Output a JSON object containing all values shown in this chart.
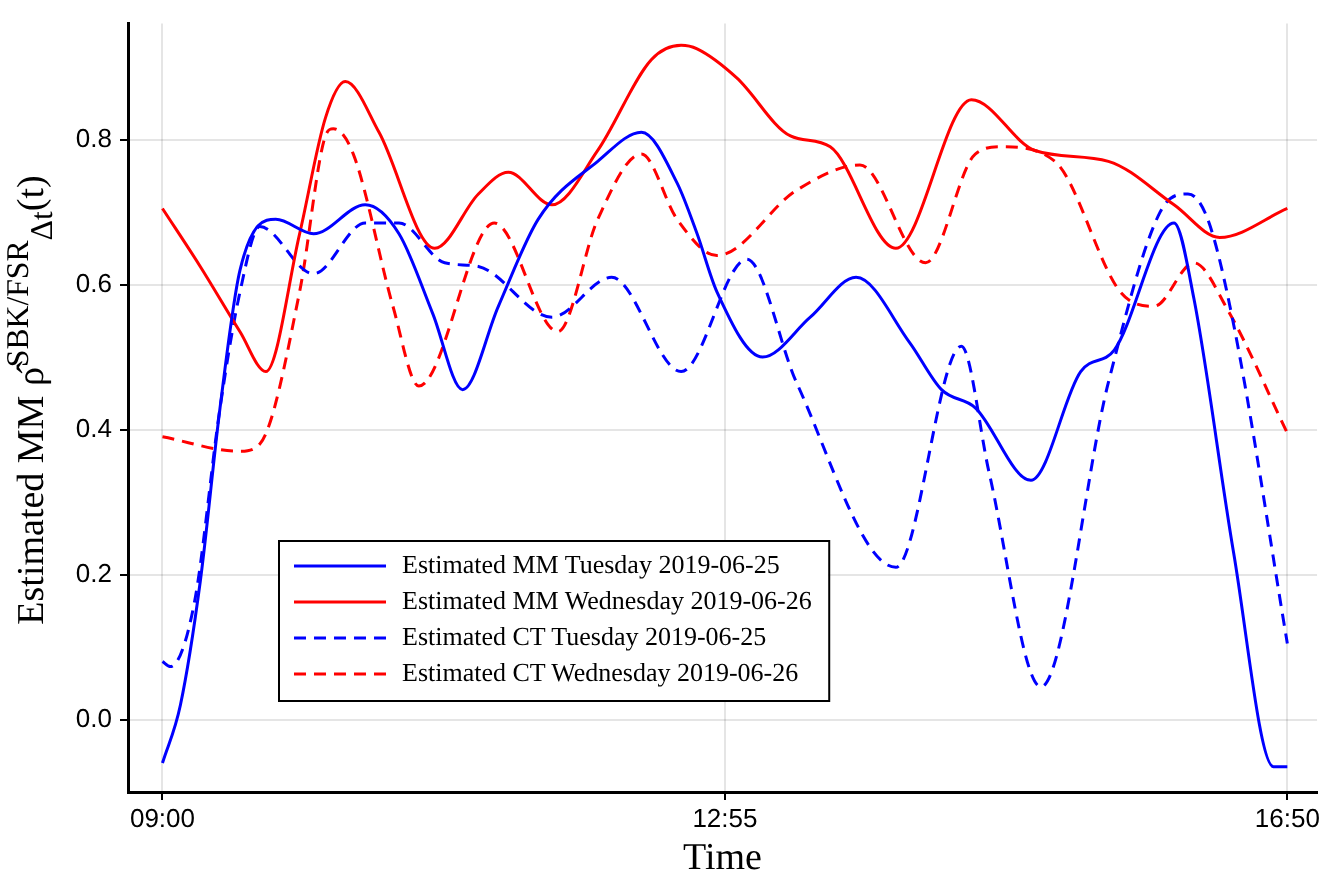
{
  "chart_data": {
    "type": "line",
    "xlabel": "Time",
    "ylabel": "Estimated MM ρ̂$^{SBK/FSR}$$_{Δt}$(t)",
    "xlim": [
      8.76,
      17.04
    ],
    "ylim": [
      -0.1,
      0.96
    ],
    "xticks": [
      {
        "value": 9,
        "label": "09:00"
      },
      {
        "value": 12.9167,
        "label": "12:55"
      },
      {
        "value": 16.8333,
        "label": "16:50"
      }
    ],
    "yticks": [
      {
        "value": 0,
        "label": "0.0"
      },
      {
        "value": 0.2,
        "label": "0.2"
      },
      {
        "value": 0.4,
        "label": "0.4"
      },
      {
        "value": 0.6,
        "label": "0.6"
      },
      {
        "value": 0.8,
        "label": "0.8"
      }
    ],
    "grid": true,
    "legend": "bottom left",
    "marker": "none",
    "series": [
      {
        "name": "Estimated MM Tuesday 2019-06-25",
        "color": "#0000ff",
        "line_style": "solid",
        "x": [
          9.0,
          9.125,
          9.263,
          9.401,
          9.54,
          9.789,
          10.052,
          10.412,
          10.647,
          10.882,
          11.09,
          11.339,
          11.616,
          12.031,
          12.335,
          12.584,
          12.723,
          12.861,
          13.179,
          13.511,
          13.83,
          14.203,
          14.425,
          14.66,
          15.048,
          15.394,
          15.629,
          16.044,
          16.183,
          16.459,
          16.736,
          16.833
        ],
        "values": [
          -0.06,
          0.02,
          0.19,
          0.43,
          0.62,
          0.69,
          0.67,
          0.71,
          0.67,
          0.56,
          0.455,
          0.57,
          0.69,
          0.77,
          0.81,
          0.74,
          0.67,
          0.59,
          0.5,
          0.555,
          0.61,
          0.52,
          0.455,
          0.43,
          0.33,
          0.48,
          0.51,
          0.685,
          0.58,
          0.23,
          -0.065,
          -0.065
        ]
      },
      {
        "name": "Estimated MM Wednesday 2019-06-26",
        "color": "#ff0000",
        "line_style": "solid",
        "x": [
          9.0,
          9.263,
          9.54,
          9.72,
          9.955,
          10.135,
          10.273,
          10.508,
          10.896,
          11.2,
          11.408,
          11.712,
          12.031,
          12.404,
          12.612,
          12.723,
          12.999,
          13.373,
          13.65,
          14.107,
          14.633,
          15.075,
          15.587,
          16.044,
          16.362,
          16.833
        ],
        "values": [
          0.705,
          0.625,
          0.535,
          0.48,
          0.67,
          0.83,
          0.88,
          0.81,
          0.65,
          0.725,
          0.755,
          0.71,
          0.785,
          0.91,
          0.93,
          0.925,
          0.885,
          0.805,
          0.79,
          0.65,
          0.855,
          0.785,
          0.77,
          0.71,
          0.665,
          0.705
        ]
      },
      {
        "name": "Estimated CT Tuesday 2019-06-25",
        "color": "#0000ff",
        "line_style": "dashed",
        "x": [
          9.0,
          9.055,
          9.221,
          9.401,
          9.54,
          9.678,
          10.052,
          10.412,
          10.647,
          10.965,
          11.2,
          11.712,
          12.128,
          12.612,
          13.069,
          13.415,
          14.107,
          14.563,
          14.757,
          15.117,
          15.587,
          15.947,
          16.141,
          16.279,
          16.459,
          16.833
        ],
        "values": [
          0.08,
          0.073,
          0.16,
          0.43,
          0.59,
          0.68,
          0.615,
          0.685,
          0.685,
          0.63,
          0.625,
          0.555,
          0.61,
          0.48,
          0.635,
          0.465,
          0.21,
          0.515,
          0.34,
          0.045,
          0.465,
          0.7,
          0.725,
          0.69,
          0.545,
          0.105
        ]
      },
      {
        "name": "Estimated CT Wednesday 2019-06-26",
        "color": "#ff0000",
        "line_style": "dashed",
        "x": [
          9.0,
          9.54,
          9.678,
          9.955,
          10.135,
          10.19,
          10.329,
          10.605,
          10.785,
          11.311,
          11.754,
          12.031,
          12.335,
          12.584,
          12.861,
          13.415,
          13.857,
          14.314,
          14.66,
          14.84,
          15.214,
          15.67,
          15.905,
          16.183,
          16.418,
          16.833
        ],
        "values": [
          0.39,
          0.37,
          0.38,
          0.59,
          0.805,
          0.815,
          0.78,
          0.57,
          0.46,
          0.685,
          0.535,
          0.69,
          0.78,
          0.69,
          0.64,
          0.73,
          0.765,
          0.63,
          0.78,
          0.79,
          0.77,
          0.59,
          0.57,
          0.63,
          0.565,
          0.395
        ]
      }
    ]
  }
}
